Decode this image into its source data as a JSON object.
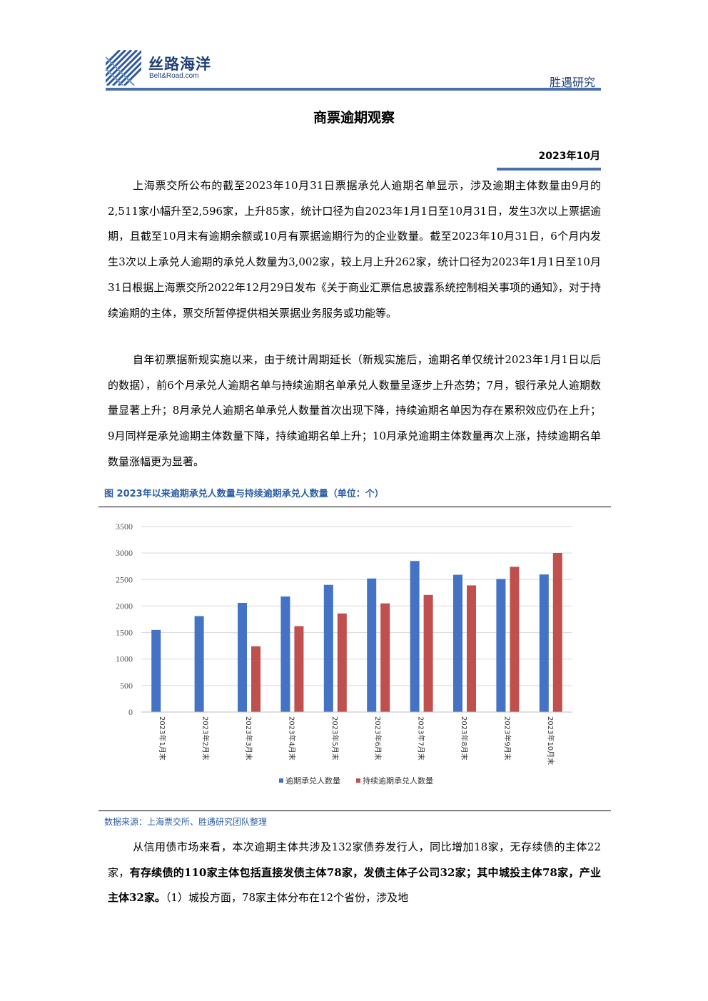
{
  "header": {
    "brand_cn": "丝路海洋",
    "brand_en": "Belt&Road.com",
    "tag": "胜遇研究"
  },
  "document": {
    "title": "商票逾期观察",
    "date": "2023年10月"
  },
  "paragraphs": {
    "p1": "上海票交所公布的截至2023年10月31日票据承兑人逾期名单显示，涉及逾期主体数量由9月的2,511家小幅升至2,596家，上升85家，统计口径为自2023年1月1日至10月31日，发生3次以上票据逾期，且截至10月末有逾期余额或10月有票据逾期行为的企业数量。截至2023年10月31日，6个月内发生3次以上承兑人逾期的承兑人数量为3,002家，较上月上升262家，统计口径为2023年1月1日至10月31日根据上海票交所2022年12月29日发布《关于商业汇票信息披露系统控制相关事项的通知》，对于持续逾期的主体，票交所暂停提供相关票据业务服务或功能等。",
    "p2": "自年初票据新规实施以来，由于统计周期延长（新规实施后，逾期名单仅统计2023年1月1日以后的数据），前6个月承兑人逾期名单与持续逾期名单承兑人数量呈逐步上升态势；7月，银行承兑人逾期数量显著上升；8月承兑人逾期名单承兑人数量首次出现下降，持续逾期名单因为存在累积效应仍在上升；9月同样是承兑逾期主体数量下降，持续逾期名单上升；10月承兑逾期主体数量再次上涨，持续逾期名单数量涨幅更为显著。",
    "p3_lead": "从信用债市场来看，本次逾期主体共涉及132家债券发行人，同比增加18家，无存续债的主体22家，",
    "p3_bold": "有存续债的110家主体包括直接发债主体78家，发债主体子公司32家；其中城投主体78家，产业主体32家。",
    "p3_tail": "（1）城投方面，78家主体分布在12个省份，涉及地"
  },
  "figure": {
    "caption": "图    2023年以来逾期承兑人数量与持续逾期承兑人数量（单位：个）",
    "source": "数据来源：上海票交所、胜遇研究团队整理"
  },
  "chart_data": {
    "type": "bar",
    "title": "",
    "xlabel": "",
    "ylabel": "",
    "ylim": [
      0,
      3500
    ],
    "yticks": [
      0,
      500,
      1000,
      1500,
      2000,
      2500,
      3000,
      3500
    ],
    "grid": true,
    "legend_position": "bottom",
    "categories": [
      "2023年1月末",
      "2023年2月末",
      "2023年3月末",
      "2023年4月末",
      "2023年5月末",
      "2023年6月末",
      "2023年7月末",
      "2023年8月末",
      "2023年9月末",
      "2023年10月末"
    ],
    "series": [
      {
        "name": "逾期承兑人数量",
        "color": "#4472c4",
        "values": [
          1550,
          1810,
          2060,
          2180,
          2400,
          2520,
          2850,
          2590,
          2511,
          2596
        ]
      },
      {
        "name": "持续逾期承兑人数量",
        "color": "#c0504d",
        "values": [
          null,
          null,
          1240,
          1620,
          1860,
          2050,
          2210,
          2390,
          2740,
          3002
        ]
      }
    ]
  }
}
